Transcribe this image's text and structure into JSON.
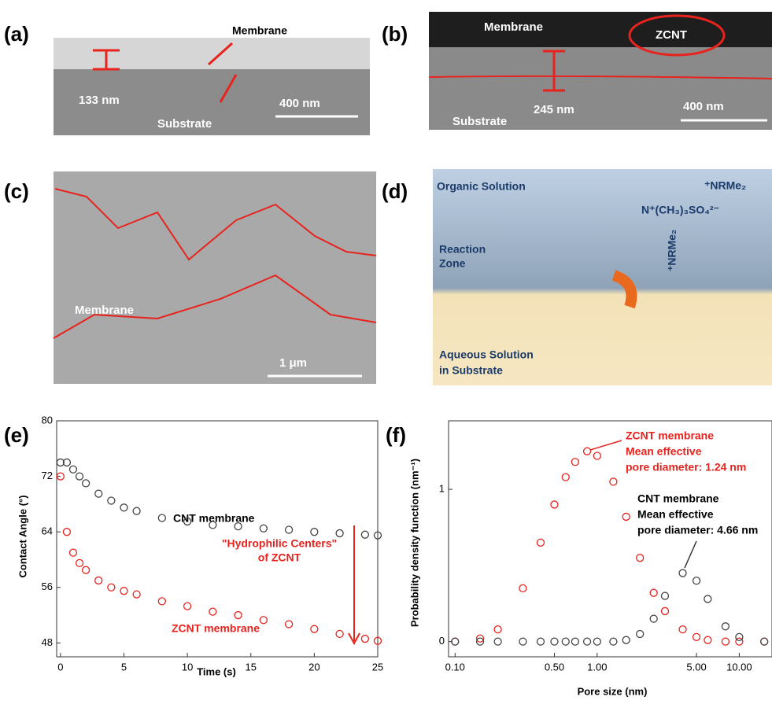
{
  "panels": {
    "a": {
      "label": "(a)",
      "membrane": "Membrane",
      "thickness": "133 nm",
      "substrate": "Substrate",
      "scale": "400 nm"
    },
    "b": {
      "label": "(b)",
      "membrane": "Membrane",
      "zcnt": "ZCNT",
      "thickness": "245 nm",
      "substrate": "Substrate",
      "scale": "400 nm"
    },
    "c": {
      "label": "(c)",
      "membrane": "Membrane",
      "scale": "1 μm"
    },
    "d": {
      "label": "(d)",
      "organic": "Organic Solution",
      "amine": "⁺NRMe₂",
      "sulfate": "N⁺(CH₃)₃SO₄²⁻",
      "reaction": [
        "Reaction",
        "Zone"
      ],
      "aqueous": [
        "Aqueous Solution",
        "in Substrate"
      ],
      "amine2": "⁺NRMe₂"
    }
  },
  "chart_data": [
    {
      "type": "scatter",
      "panel_label": "(e)",
      "x_label": "Time (s)",
      "y_label": "Contact Angle (°)",
      "x": [
        0,
        0.5,
        1,
        1.5,
        2,
        3,
        4,
        5,
        6,
        8,
        10,
        12,
        14,
        16,
        18,
        20,
        22,
        24,
        25
      ],
      "series": [
        {
          "name": "CNT membrane",
          "color": "#444444",
          "values": [
            74,
            74,
            73,
            72,
            71,
            69.5,
            68.5,
            67.5,
            67,
            66,
            65.5,
            65,
            64.8,
            64.5,
            64.3,
            64,
            63.8,
            63.6,
            63.5
          ]
        },
        {
          "name": "ZCNT membrane",
          "color": "#e8231e",
          "values": [
            72,
            64,
            61,
            59.5,
            58.5,
            57,
            56,
            55.5,
            55,
            54,
            53.3,
            52.5,
            52,
            51.3,
            50.7,
            50,
            49.3,
            48.6,
            48.3
          ]
        }
      ],
      "annotation": [
        "\"Hydrophilic Centers\"",
        "of ZCNT"
      ],
      "xlim": [
        -0.3,
        25
      ],
      "ylim": [
        46,
        80
      ],
      "xticks": [
        0,
        5,
        10,
        15,
        20,
        25
      ],
      "yticks": [
        48,
        56,
        64,
        72,
        80
      ]
    },
    {
      "type": "scatter",
      "panel_label": "(f)",
      "x_label": "Pore size (nm)",
      "y_label": "Probability density function (nm⁻¹)",
      "x": [
        0.1,
        0.15,
        0.2,
        0.3,
        0.4,
        0.5,
        0.6,
        0.7,
        0.85,
        1.0,
        1.3,
        1.6,
        2,
        2.5,
        3,
        4,
        5,
        6,
        8,
        10,
        15
      ],
      "series": [
        {
          "name": "ZCNT membrane",
          "color": "#e8231e",
          "values": [
            0,
            0.02,
            0.08,
            0.35,
            0.65,
            0.9,
            1.08,
            1.18,
            1.25,
            1.22,
            1.05,
            0.82,
            0.55,
            0.32,
            0.2,
            0.08,
            0.03,
            0.01,
            0,
            0,
            0
          ]
        },
        {
          "name": "CNT membrane",
          "color": "#444444",
          "values": [
            0,
            0,
            0,
            0,
            0,
            0,
            0,
            0,
            0,
            0,
            0,
            0.01,
            0.05,
            0.15,
            0.3,
            0.45,
            0.4,
            0.28,
            0.1,
            0.03,
            0
          ]
        }
      ],
      "annotations": [
        [
          "Mean effective",
          "pore diameter: 1.24 nm"
        ],
        [
          "Mean effective",
          "pore diameter: 4.66 nm"
        ]
      ],
      "xscale": "log",
      "xlim": [
        0.09,
        17
      ],
      "ylim": [
        -0.1,
        1.45
      ],
      "xticks": [
        {
          "value": 0.1,
          "label": "0.10"
        },
        {
          "value": 0.5,
          "label": "0.50"
        },
        {
          "value": 1,
          "label": "1.00"
        },
        {
          "value": 5,
          "label": "5.00"
        },
        {
          "value": 10,
          "label": "10.00"
        }
      ],
      "yticks": [
        0,
        1
      ]
    }
  ]
}
